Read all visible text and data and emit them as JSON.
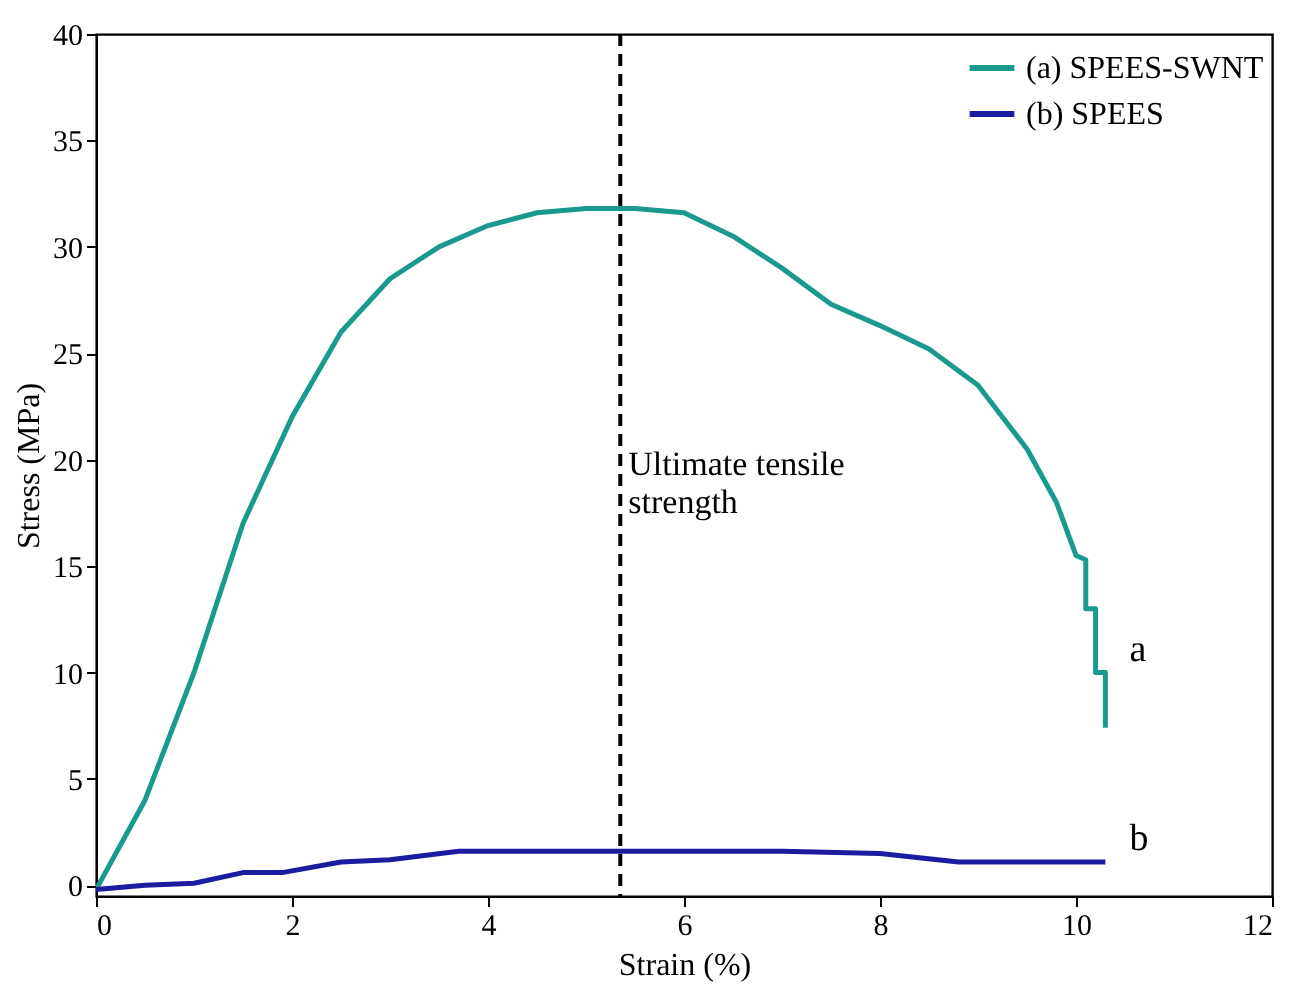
{
  "chart_data": {
    "type": "line",
    "xlabel": "Strain (%)",
    "ylabel": "Stress (MPa)",
    "xlim": [
      0,
      12
    ],
    "xticks": [
      0,
      2,
      4,
      6,
      8,
      10,
      12
    ],
    "ylim": [
      -0.5,
      40
    ],
    "yticks": [
      0,
      5,
      10,
      15,
      20,
      25,
      30,
      35,
      40
    ],
    "grid": false,
    "legend": "top right",
    "line_style": "solid",
    "series": [
      {
        "name": "(a) SPEES-SWNT",
        "color": "#1a9a8c",
        "x": [
          0,
          0.5,
          1,
          1.5,
          2,
          2.5,
          3,
          3.5,
          4,
          4.5,
          5,
          5.5,
          6,
          6.5,
          7,
          7.5,
          8,
          8.5,
          9,
          9.5,
          9.8,
          10,
          10.1,
          10.1,
          10.2,
          10.2,
          10.3,
          10.3
        ],
        "values": [
          -0.2,
          4,
          10,
          17,
          22,
          26,
          28.5,
          30,
          31,
          31.6,
          31.8,
          31.8,
          31.6,
          30.5,
          29,
          27.3,
          26.3,
          25.2,
          23.5,
          20.5,
          18,
          15.5,
          15.3,
          13,
          13,
          10,
          10,
          7.4
        ]
      },
      {
        "name": "(b) SPEES",
        "color": "#1c1ca0",
        "x": [
          0,
          0.5,
          1,
          1.5,
          1.9,
          2.5,
          3,
          3.7,
          5,
          6,
          7,
          8,
          8.8,
          9.5,
          10.3
        ],
        "values": [
          -0.2,
          0,
          0.1,
          0.6,
          0.6,
          1.1,
          1.2,
          1.6,
          1.6,
          1.6,
          1.6,
          1.5,
          1.1,
          1.1,
          1.1
        ]
      }
    ],
    "ref_lines": [
      {
        "axis": "x",
        "value": 5.35,
        "label": "Ultimate tensile\nstrength",
        "line_style": "dashed",
        "color": "#000000"
      }
    ],
    "annotations": [
      "a",
      "b"
    ]
  }
}
